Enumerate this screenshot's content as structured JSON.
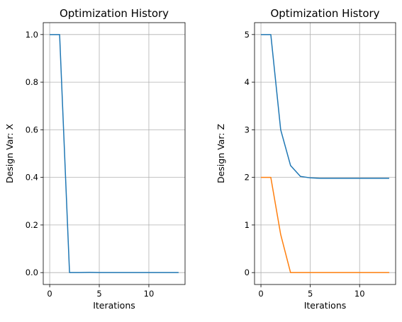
{
  "chart_data": [
    {
      "type": "line",
      "title": "Optimization History",
      "xlabel": "Iterations",
      "ylabel": "Design Var: X",
      "xlim": [
        -0.65,
        13.65
      ],
      "ylim": [
        -0.05,
        1.05
      ],
      "xticks": [
        0,
        5,
        10
      ],
      "yticks": [
        0.0,
        0.2,
        0.4,
        0.6,
        0.8,
        1.0
      ],
      "xtick_labels": [
        "0",
        "5",
        "10"
      ],
      "ytick_labels": [
        "0.0",
        "0.2",
        "0.4",
        "0.6",
        "0.8",
        "1.0"
      ],
      "grid": true,
      "x": [
        0,
        1,
        2,
        3,
        4,
        5,
        6,
        7,
        8,
        9,
        10,
        11,
        12,
        13
      ],
      "series": [
        {
          "color": "#1f77b4",
          "values": [
            1.0,
            1.0,
            0.0,
            0.0,
            0.001,
            0.0,
            0.0,
            0.0,
            0.0,
            0.0,
            0.0,
            0.0,
            0.0,
            0.0
          ]
        }
      ]
    },
    {
      "type": "line",
      "title": "Optimization History",
      "xlabel": "Iterations",
      "ylabel": "Design Var: Z",
      "xlim": [
        -0.65,
        13.65
      ],
      "ylim": [
        -0.25,
        5.25
      ],
      "xticks": [
        0,
        5,
        10
      ],
      "yticks": [
        0,
        1,
        2,
        3,
        4,
        5
      ],
      "xtick_labels": [
        "0",
        "5",
        "10"
      ],
      "ytick_labels": [
        "0",
        "1",
        "2",
        "3",
        "4",
        "5"
      ],
      "grid": true,
      "x": [
        0,
        1,
        2,
        3,
        4,
        5,
        6,
        7,
        8,
        9,
        10,
        11,
        12,
        13
      ],
      "series": [
        {
          "color": "#1f77b4",
          "values": [
            5.0,
            5.0,
            3.0,
            2.25,
            2.02,
            1.99,
            1.98,
            1.98,
            1.98,
            1.98,
            1.98,
            1.98,
            1.98,
            1.98
          ]
        },
        {
          "color": "#ff7f0e",
          "values": [
            2.0,
            2.0,
            0.8,
            0.0,
            0.0,
            0.0,
            0.0,
            0.0,
            0.0,
            0.0,
            0.0,
            0.0,
            0.0,
            0.0
          ]
        }
      ]
    }
  ]
}
